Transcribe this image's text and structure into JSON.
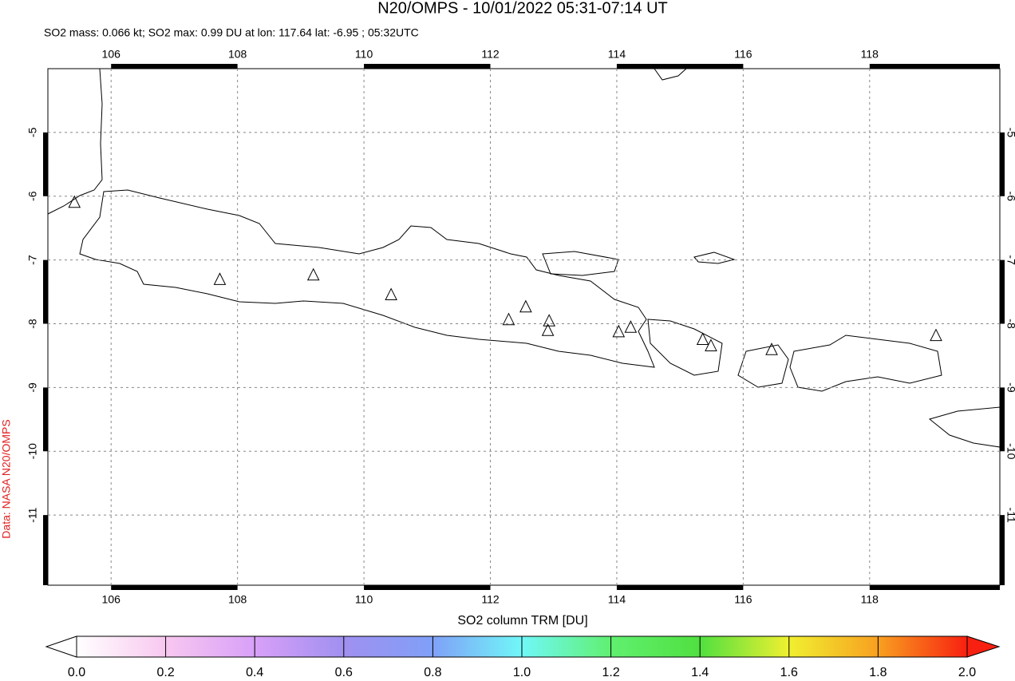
{
  "chart_data": {
    "type": "scatter",
    "title": "N20/OMPS - 10/01/2022 05:31-07:14 UT",
    "subtitle": "SO2 mass: 0.066 kt; SO2 max: 0.99 DU at lon: 117.64 lat: -6.95 ; 05:32UTC",
    "side_label": "Data: NASA N20/OMPS",
    "xlim": [
      105,
      120.06
    ],
    "ylim": [
      -12.1,
      -4
    ],
    "xticks": [
      106,
      108,
      110,
      112,
      114,
      116,
      118
    ],
    "yticks": [
      -5,
      -6,
      -7,
      -8,
      -9,
      -10,
      -11
    ],
    "grid": true,
    "x": [
      105.42,
      107.72,
      109.2,
      110.43,
      112.29,
      112.56,
      112.93,
      112.91,
      114.03,
      114.22,
      115.36,
      115.49,
      116.45,
      119.05
    ],
    "values": [
      -6.1,
      -7.31,
      -7.24,
      -7.55,
      -7.94,
      -7.74,
      -7.96,
      -8.11,
      -8.13,
      -8.06,
      -8.25,
      -8.35,
      -8.41,
      -8.19
    ],
    "colorbar": {
      "label": "SO2 column TRM [DU]",
      "lim": [
        0,
        2
      ],
      "ticks": [
        {
          "value": 0,
          "label": "0.0"
        },
        {
          "value": 0.2,
          "label": "0.2"
        },
        {
          "value": 0.4,
          "label": "0.4"
        },
        {
          "value": 0.6,
          "label": "0.6"
        },
        {
          "value": 0.8,
          "label": "0.8"
        },
        {
          "value": 1,
          "label": "1.0"
        },
        {
          "value": 1.2,
          "label": "1.2"
        },
        {
          "value": 1.4,
          "label": "1.4"
        },
        {
          "value": 1.6,
          "label": "1.6"
        },
        {
          "value": 1.8,
          "label": "1.8"
        },
        {
          "value": 2,
          "label": "2.0"
        }
      ],
      "colors": [
        "#ffffff",
        "#f8c8f0",
        "#d8a0f8",
        "#a090f0",
        "#80a0f8",
        "#70f8f8",
        "#60f070",
        "#50e040",
        "#f0f030",
        "#f8a020",
        "#f82010"
      ]
    }
  }
}
